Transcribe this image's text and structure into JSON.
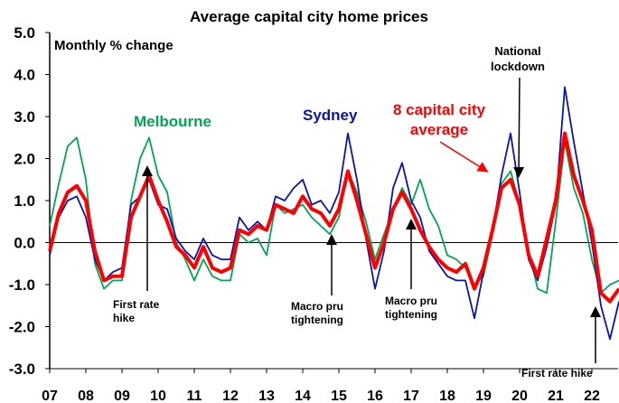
{
  "chart_data": {
    "type": "line",
    "title": "Average capital city home prices",
    "ylabel": "Monthly % change",
    "xlabel": "",
    "ylim": [
      -3.0,
      5.0
    ],
    "xlim": [
      2007,
      2022.75
    ],
    "yticks": [
      "5.0",
      "4.0",
      "3.0",
      "2.0",
      "1.0",
      "0.0",
      "-1.0",
      "-2.0",
      "-3.0"
    ],
    "ytick_values": [
      5,
      4,
      3,
      2,
      1,
      0,
      -1,
      -2,
      -3
    ],
    "xticks": [
      "07",
      "08",
      "09",
      "10",
      "11",
      "12",
      "13",
      "14",
      "15",
      "16",
      "17",
      "18",
      "19",
      "20",
      "21",
      "22"
    ],
    "grid": false,
    "x_start": 2007,
    "x_step": 0.25,
    "series": [
      {
        "name": "Melbourne",
        "color": "#00A651",
        "values": [
          0.4,
          1.4,
          2.3,
          2.5,
          1.5,
          -0.5,
          -1.1,
          -0.9,
          -0.9,
          1.0,
          2.0,
          2.5,
          1.6,
          1.2,
          0.0,
          -0.4,
          -0.9,
          -0.4,
          -0.8,
          -0.9,
          -0.9,
          0.2,
          0.0,
          0.1,
          -0.3,
          0.9,
          0.7,
          0.8,
          0.9,
          0.6,
          0.4,
          0.2,
          0.6,
          1.7,
          1.2,
          0.5,
          -0.4,
          0.2,
          0.8,
          1.3,
          0.9,
          1.5,
          0.8,
          0.4,
          -0.3,
          -0.4,
          -0.6,
          -1.0,
          -0.8,
          0.2,
          1.4,
          1.7,
          0.9,
          -0.2,
          -1.1,
          -1.2,
          0.5,
          2.4,
          1.3,
          0.7,
          -0.4,
          -1.2,
          -1.0,
          -0.9
        ]
      },
      {
        "name": "Sydney",
        "color": "#0A14A8",
        "values": [
          -0.3,
          0.6,
          1.0,
          1.1,
          0.6,
          -0.4,
          -0.9,
          -0.7,
          -0.6,
          0.9,
          1.1,
          1.5,
          0.9,
          0.8,
          0.1,
          -0.2,
          -0.4,
          0.1,
          -0.3,
          -0.4,
          -0.4,
          0.6,
          0.3,
          0.5,
          0.3,
          1.1,
          1.0,
          1.3,
          1.5,
          0.9,
          1.0,
          0.7,
          1.2,
          2.6,
          1.5,
          0.1,
          -1.1,
          -0.2,
          1.3,
          1.9,
          1.0,
          0.6,
          -0.2,
          -0.5,
          -0.8,
          -0.9,
          -0.9,
          -1.8,
          -0.7,
          0.3,
          1.6,
          2.6,
          1.2,
          -0.4,
          -0.9,
          -0.1,
          0.9,
          3.7,
          2.4,
          1.2,
          0.0,
          -1.5,
          -2.3,
          -1.4
        ]
      },
      {
        "name": "8 capital city average",
        "color": "#FF0000",
        "values": [
          -0.2,
          0.7,
          1.2,
          1.35,
          1.0,
          -0.2,
          -0.9,
          -0.8,
          -0.8,
          0.6,
          1.1,
          1.6,
          1.0,
          0.5,
          -0.1,
          -0.3,
          -0.6,
          -0.1,
          -0.6,
          -0.7,
          -0.6,
          0.3,
          0.2,
          0.4,
          0.3,
          0.9,
          0.8,
          0.7,
          1.1,
          0.8,
          0.7,
          0.4,
          0.8,
          1.7,
          1.0,
          0.2,
          -0.6,
          0.0,
          0.8,
          1.2,
          0.8,
          0.3,
          -0.1,
          -0.4,
          -0.6,
          -0.7,
          -0.5,
          -1.1,
          -0.6,
          0.3,
          1.3,
          1.5,
          0.9,
          -0.3,
          -0.8,
          0.1,
          1.0,
          2.6,
          1.6,
          1.0,
          0.3,
          -1.2,
          -1.4,
          -1.1
        ]
      }
    ],
    "legend_labels": {
      "melbourne": "Melbourne",
      "sydney": "Sydney",
      "avg_line1": "8 capital city",
      "avg_line2": "average"
    },
    "annotations": {
      "first_rate_hike_1": [
        "First rate",
        "hike"
      ],
      "macro_pru_1": [
        "Macro pru",
        "tightening"
      ],
      "macro_pru_2": [
        "Macro pru",
        "tightening"
      ],
      "national_lockdown": [
        "National",
        "lockdown"
      ],
      "first_rate_hike_2": "First rate hike"
    }
  }
}
